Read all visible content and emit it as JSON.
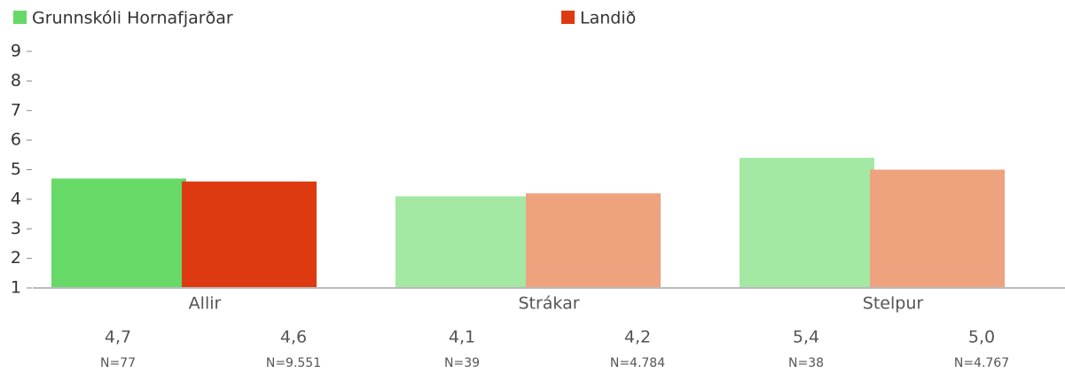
{
  "chart_data": {
    "type": "bar",
    "categories": [
      "Allir",
      "Strákar",
      "Stelpur"
    ],
    "series": [
      {
        "name": "Grunnskóli Hornafjarðar",
        "color": "#66d966",
        "colors": [
          "#66d966",
          "#a3e8a3",
          "#a3e8a3"
        ],
        "values": [
          4.7,
          4.1,
          5.4
        ],
        "value_labels": [
          "4,7",
          "4,1",
          "5,4"
        ],
        "n_labels": [
          "N=77",
          "N=39",
          "N=38"
        ]
      },
      {
        "name": "Landið",
        "color": "#dd3a12",
        "colors": [
          "#dd3a12",
          "#eea27e",
          "#eea27e"
        ],
        "values": [
          4.6,
          4.2,
          5.0
        ],
        "value_labels": [
          "4,6",
          "4,2",
          "5,0"
        ],
        "n_labels": [
          "N=9.551",
          "N=4.784",
          "N=4.767"
        ]
      }
    ],
    "ylim": [
      1,
      9
    ],
    "yticks": [
      1,
      2,
      3,
      4,
      5,
      6,
      7,
      8,
      9
    ],
    "legend": "top"
  }
}
